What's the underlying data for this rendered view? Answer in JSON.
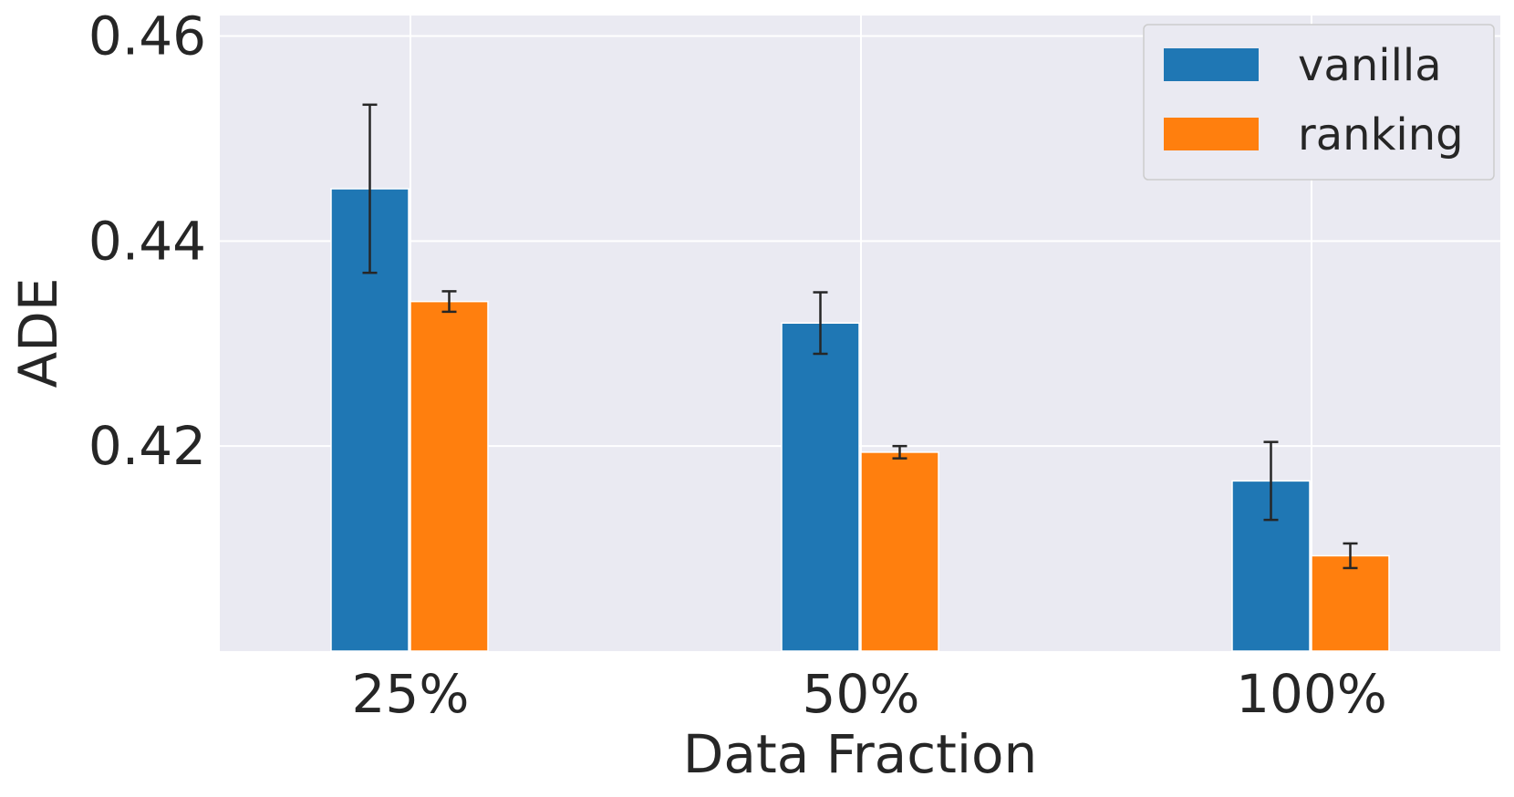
{
  "chart_data": {
    "type": "bar",
    "title": "",
    "xlabel": "Data Fraction",
    "ylabel": "ADE",
    "categories": [
      "25%",
      "50%",
      "100%"
    ],
    "ylim": [
      0.4,
      0.462
    ],
    "yticks": [
      0.42,
      0.44,
      0.46
    ],
    "ytick_labels": [
      "0.42",
      "0.44",
      "0.46"
    ],
    "grid": true,
    "legend_position": "top-right",
    "series": [
      {
        "name": "vanilla",
        "color": "#1f77b4",
        "values": [
          0.4451,
          0.432,
          0.4166
        ],
        "errors": [
          0.0082,
          0.003,
          0.0038
        ]
      },
      {
        "name": "ranking",
        "color": "#ff7f0e",
        "values": [
          0.4341,
          0.4194,
          0.4093
        ],
        "errors": [
          0.001,
          0.0006,
          0.0012
        ]
      }
    ]
  }
}
